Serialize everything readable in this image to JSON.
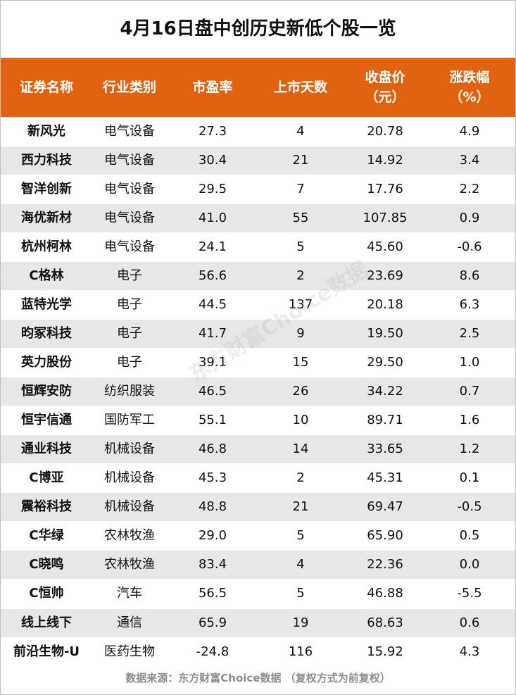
{
  "title": "4月16日盘中创历史新低个股一览",
  "headers": [
    "证券名称",
    "行业类别",
    "市盈率",
    "上市天数",
    [
      "收盘价",
      "（元）"
    ],
    [
      "涨跌幅",
      "（%）"
    ]
  ],
  "rows": [
    [
      "新风光",
      "电气设备",
      "27.3",
      "4",
      "20.78",
      "4.9"
    ],
    [
      "西力科技",
      "电气设备",
      "30.4",
      "21",
      "14.92",
      "3.4"
    ],
    [
      "智洋创新",
      "电气设备",
      "29.5",
      "7",
      "17.76",
      "2.2"
    ],
    [
      "海优新材",
      "电气设备",
      "41.0",
      "55",
      "107.85",
      "0.9"
    ],
    [
      "杭州柯林",
      "电气设备",
      "24.1",
      "5",
      "45.60",
      "-0.6"
    ],
    [
      "C格林",
      "电子",
      "56.6",
      "2",
      "23.69",
      "8.6"
    ],
    [
      "蓝特光学",
      "电子",
      "44.5",
      "137",
      "20.18",
      "6.3"
    ],
    [
      "昀冢科技",
      "电子",
      "41.7",
      "9",
      "19.50",
      "2.5"
    ],
    [
      "英力股份",
      "电子",
      "39.1",
      "15",
      "29.50",
      "1.0"
    ],
    [
      "恒辉安防",
      "纺织服装",
      "46.5",
      "26",
      "34.22",
      "0.7"
    ],
    [
      "恒宇信通",
      "国防军工",
      "55.1",
      "10",
      "89.71",
      "1.6"
    ],
    [
      "通业科技",
      "机械设备",
      "46.8",
      "14",
      "33.65",
      "1.2"
    ],
    [
      "C博亚",
      "机械设备",
      "45.3",
      "2",
      "45.31",
      "0.1"
    ],
    [
      "震裕科技",
      "机械设备",
      "48.8",
      "21",
      "69.47",
      "-0.5"
    ],
    [
      "C华绿",
      "农林牧渔",
      "29.0",
      "5",
      "65.90",
      "0.5"
    ],
    [
      "C晓鸣",
      "农林牧渔",
      "83.4",
      "4",
      "22.36",
      "0.0"
    ],
    [
      "C恒帅",
      "汽车",
      "56.5",
      "5",
      "46.88",
      "-5.5"
    ],
    [
      "线上线下",
      "通信",
      "65.9",
      "19",
      "68.63",
      "0.6"
    ],
    [
      "前沿生物-U",
      "医药生物",
      "-24.8",
      "116",
      "15.92",
      "4.3"
    ]
  ],
  "watermark": "东方财富Choice数据",
  "source": "数据来源：东方财富Choice数据 （复权方式为前复权）"
}
